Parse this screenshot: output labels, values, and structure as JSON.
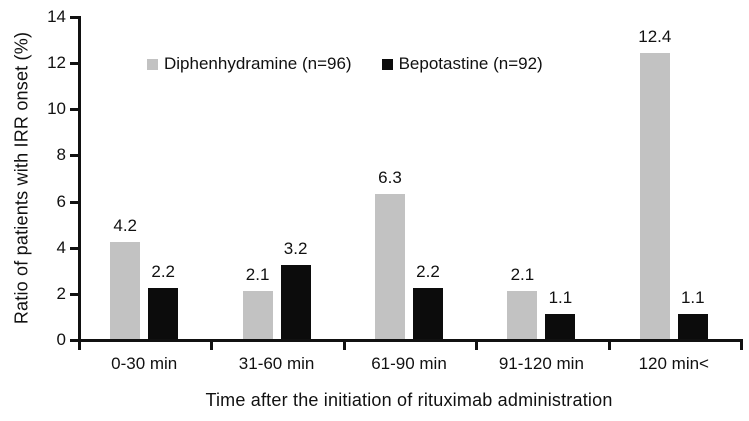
{
  "chart_data": {
    "type": "bar",
    "title": "",
    "categories": [
      "0-30 min",
      "31-60 min",
      "61-90 min",
      "91-120 min",
      "120 min<"
    ],
    "series": [
      {
        "name": "Diphenhydramine (n=96)",
        "color": "#c2c2c2",
        "values": [
          4.2,
          2.1,
          6.3,
          2.1,
          12.4
        ]
      },
      {
        "name": "Bepotastine (n=92)",
        "color": "#0c0c0c",
        "values": [
          2.2,
          3.2,
          2.2,
          1.1,
          1.1
        ]
      }
    ],
    "xlabel": "Time after the initiation of rituximab administration",
    "ylabel": "Ratio of patients with IRR onset (%)",
    "ylim": [
      0,
      14
    ],
    "yticks": [
      0,
      2,
      4,
      6,
      8,
      10,
      12,
      14
    ],
    "grid": false,
    "legend_position": "top-center",
    "value_labels": true,
    "value_label_format": "one-decimal",
    "axis_color": "#111111",
    "text_color": "#111111",
    "background_color": "#ffffff"
  }
}
